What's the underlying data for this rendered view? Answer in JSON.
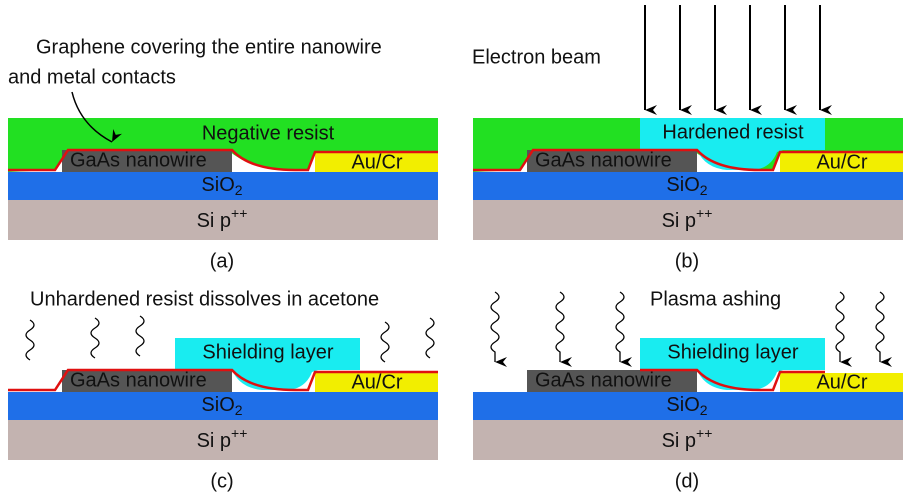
{
  "panels": [
    {
      "caption": "(a)",
      "notes": [
        "Graphene covering the entire nanowire",
        "and metal contacts"
      ],
      "resist": "Negative resist",
      "nanowire": "GaAs nanowire",
      "contact": "Au/Cr",
      "oxide": {
        "text": "SiO",
        "sub": "2"
      },
      "substrate": {
        "text": "Si p",
        "sup": "++"
      }
    },
    {
      "caption": "(b)",
      "notes": [
        "Electron beam"
      ],
      "resist": "Hardened resist",
      "nanowire": "GaAs nanowire",
      "contact": "Au/Cr",
      "oxide": {
        "text": "SiO",
        "sub": "2"
      },
      "substrate": {
        "text": "Si p",
        "sup": "++"
      }
    },
    {
      "caption": "(c)",
      "notes": [
        "Unhardened resist dissolves in acetone"
      ],
      "resist": "Shielding layer",
      "nanowire": "GaAs nanowire",
      "contact": "Au/Cr",
      "oxide": {
        "text": "SiO",
        "sub": "2"
      },
      "substrate": {
        "text": "Si p",
        "sup": "++"
      }
    },
    {
      "caption": "(d)",
      "notes": [
        "Plasma ashing"
      ],
      "resist": "Shielding layer",
      "nanowire": "GaAs nanowire",
      "contact": "Au/Cr",
      "oxide": {
        "text": "SiO",
        "sub": "2"
      },
      "substrate": {
        "text": "Si p",
        "sup": "++"
      }
    }
  ]
}
